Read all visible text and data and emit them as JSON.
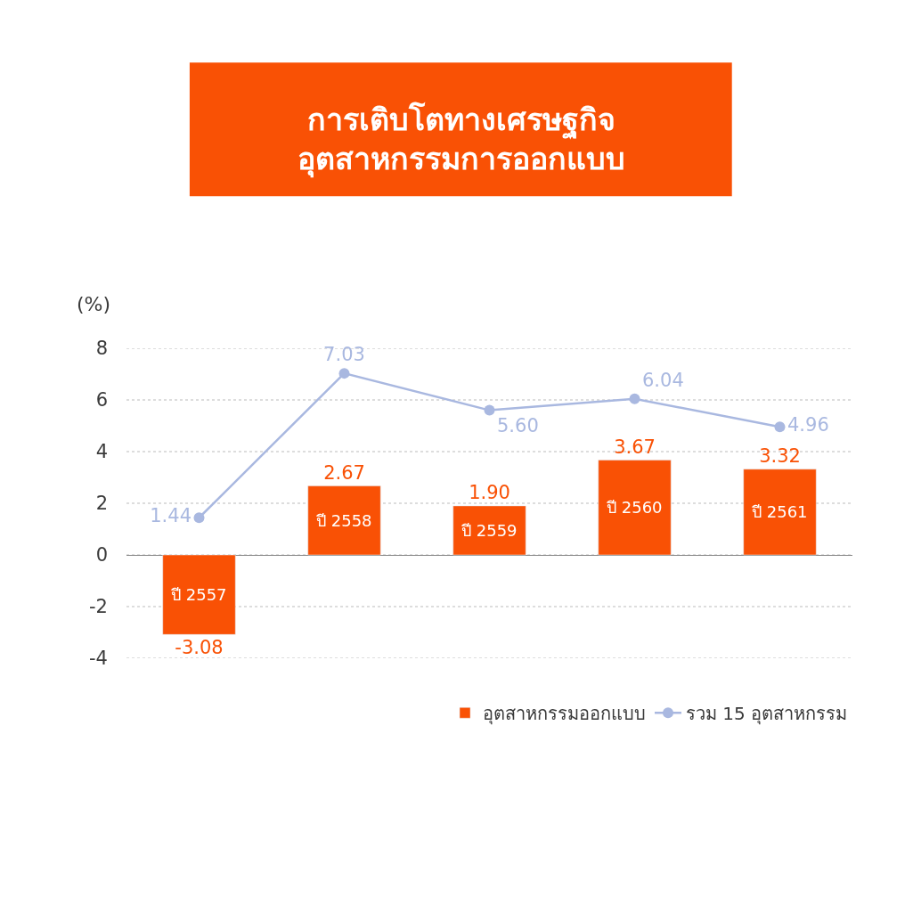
{
  "chart_data": {
    "type": "bar",
    "title": "การเติบโตทางเศรษฐกิจ\nอุตสาหกรรมการออกแบบ",
    "ylabel": "(%)",
    "categories": [
      "ปี 2557",
      "ปี 2558",
      "ปี 2559",
      "ปี 2560",
      "ปี 2561"
    ],
    "series": [
      {
        "name": "อุตสาหกรรมออกแบบ",
        "color": "#f95105",
        "values": [
          -3.08,
          2.67,
          1.9,
          3.67,
          3.32
        ],
        "value_labels": [
          "-3.08",
          "2.67",
          "1.90",
          "3.67",
          "3.32"
        ]
      },
      {
        "name": "รวม 15 อุตสาหกรรม",
        "type": "line",
        "color": "#a9b8e0",
        "values": [
          1.44,
          7.03,
          5.6,
          6.04,
          4.96
        ],
        "value_labels": [
          "1.44",
          "7.03",
          "5.60",
          "6.04",
          "4.96"
        ],
        "marker": "circle",
        "line_style": "solid"
      }
    ],
    "ylim": [
      -4,
      8
    ],
    "yticks": [
      -4,
      -2,
      0,
      2,
      4,
      6,
      8
    ],
    "grid": "y",
    "legend": "bottom right",
    "tick_labels": "y"
  }
}
